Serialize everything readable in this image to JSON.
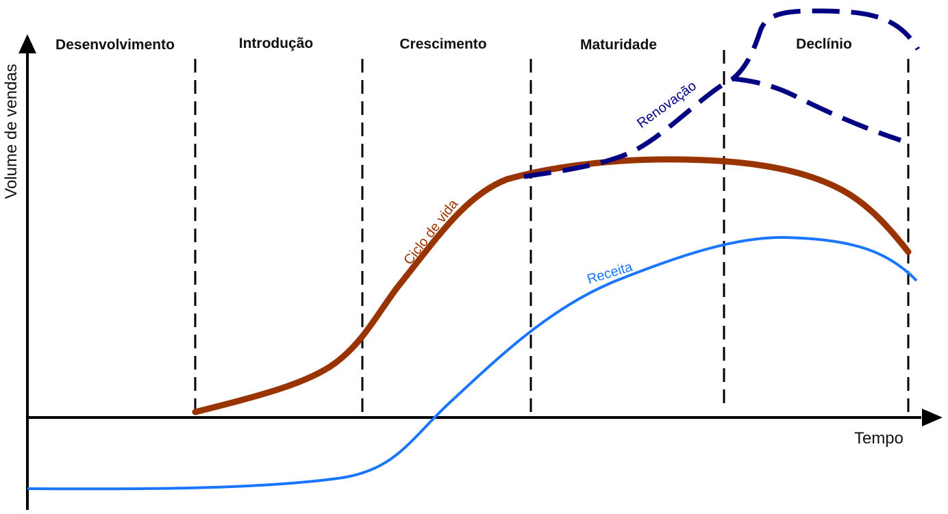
{
  "diagram": {
    "stages": [
      "Desenvolvimento",
      "Introdução",
      "Crescimento",
      "Maturidade",
      "Declínio"
    ],
    "y_axis_label": "Volume de vendas",
    "x_axis_label": "Tempo",
    "curves": {
      "life_cycle": {
        "label": "Ciclo de vida",
        "color": "#993300"
      },
      "revenue": {
        "label": "Receita",
        "color": "#1a75ff"
      },
      "renewal": {
        "label": "Renovação",
        "color": "#000080"
      }
    },
    "axis_color": "#000000",
    "divider_color": "#000000"
  }
}
